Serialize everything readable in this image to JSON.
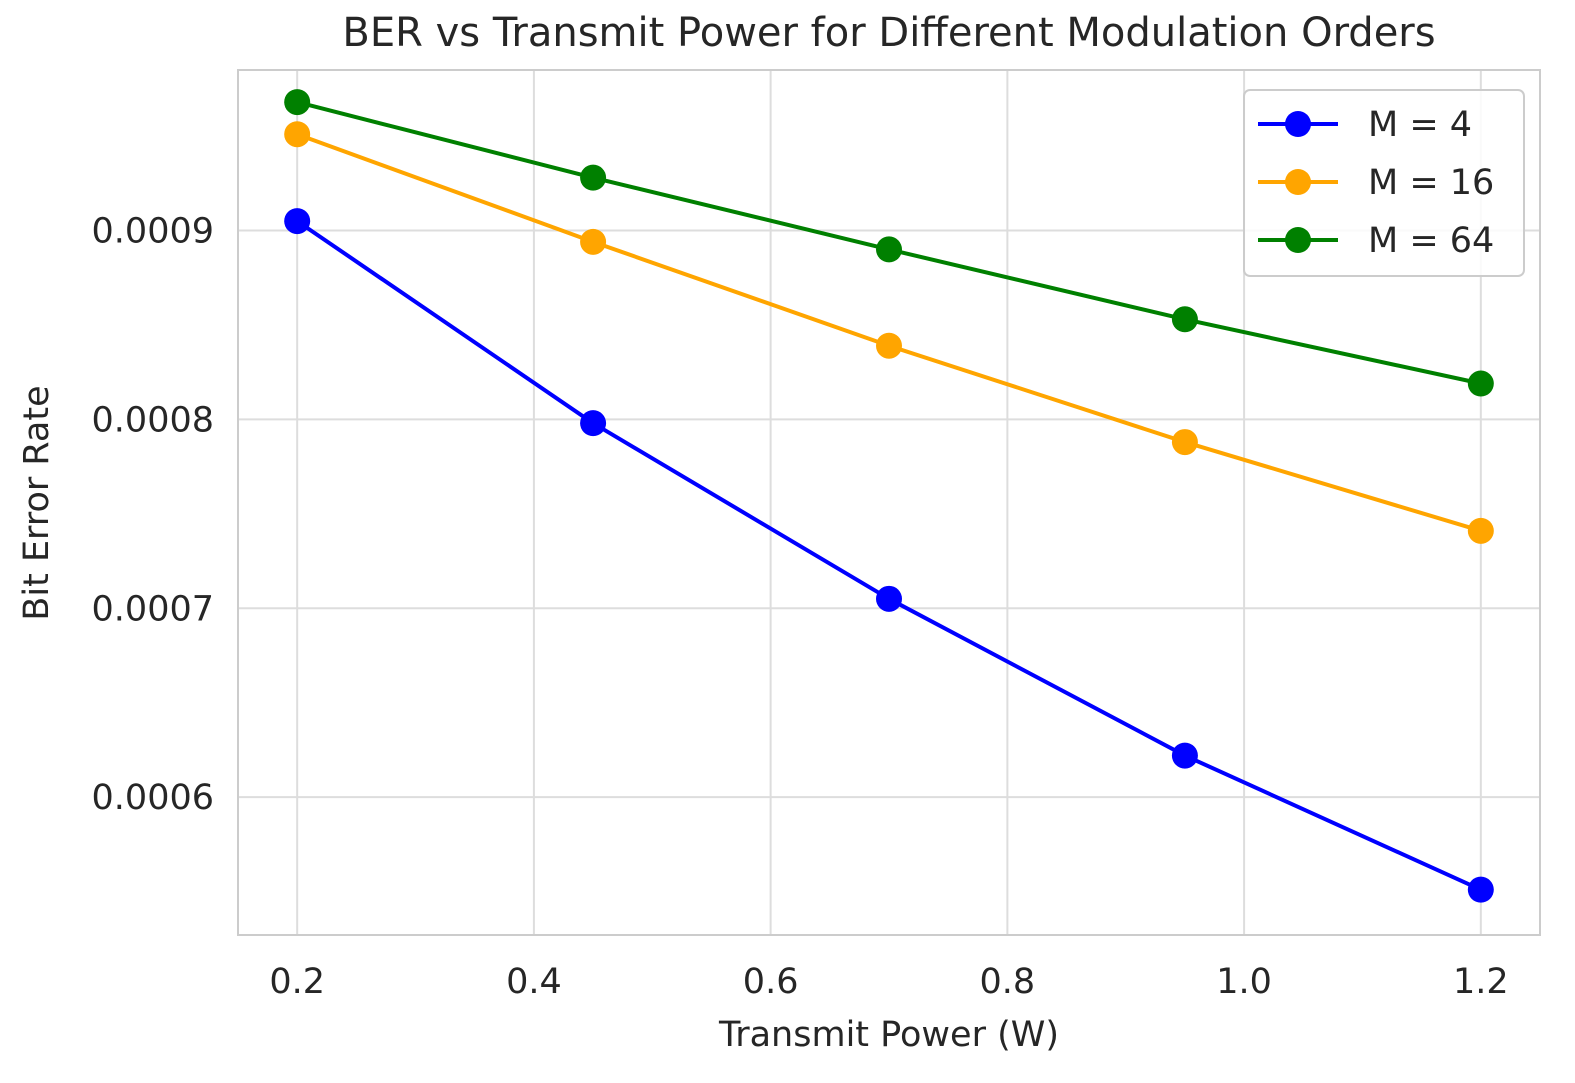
{
  "chart_data": {
    "type": "line",
    "title": "BER vs Transmit Power for Different Modulation Orders",
    "xlabel": "Transmit Power (W)",
    "ylabel": "Bit Error Rate",
    "x": [
      0.2,
      0.45,
      0.7,
      0.95,
      1.2
    ],
    "xlim": [
      0.15,
      1.25
    ],
    "ylim": [
      0.000527,
      0.000985
    ],
    "xticks": [
      0.2,
      0.4,
      0.6,
      0.8,
      1.0,
      1.2
    ],
    "xtick_labels": [
      "0.2",
      "0.4",
      "0.6",
      "0.8",
      "1.0",
      "1.2"
    ],
    "yticks": [
      0.0006,
      0.0007,
      0.0008,
      0.0009
    ],
    "ytick_labels": [
      "0.0006",
      "0.0007",
      "0.0008",
      "0.0009"
    ],
    "grid": true,
    "legend_position": "top-right",
    "series": [
      {
        "name": "M = 4",
        "color": "#0000ff",
        "marker": "circle",
        "values": [
          0.000905,
          0.000798,
          0.000705,
          0.000622,
          0.000551
        ]
      },
      {
        "name": "M = 16",
        "color": "#ffa500",
        "marker": "circle",
        "values": [
          0.000951,
          0.000894,
          0.000839,
          0.000788,
          0.000741
        ]
      },
      {
        "name": "M = 64",
        "color": "#008000",
        "marker": "circle",
        "values": [
          0.000968,
          0.000928,
          0.00089,
          0.000853,
          0.000819
        ]
      }
    ]
  }
}
